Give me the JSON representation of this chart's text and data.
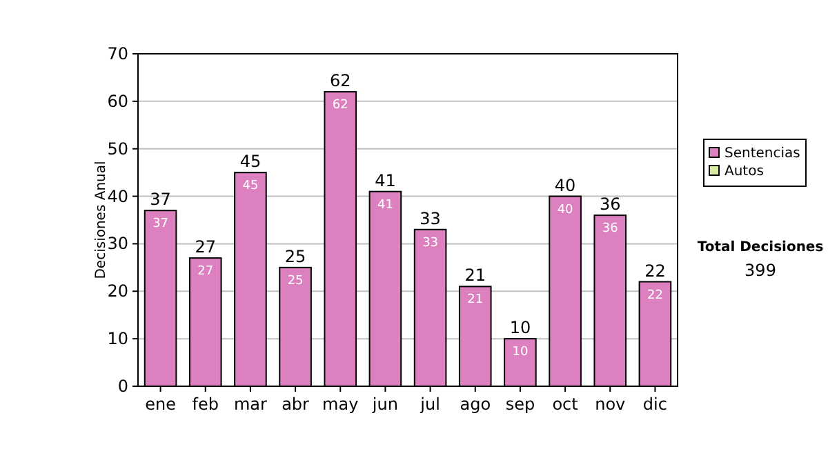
{
  "chart_data": {
    "type": "bar",
    "ylabel": "Decisiones Anual",
    "categories": [
      "ene",
      "feb",
      "mar",
      "abr",
      "may",
      "jun",
      "jul",
      "ago",
      "sep",
      "oct",
      "nov",
      "dic"
    ],
    "series": [
      {
        "name": "Sentencias",
        "color": "#dd80c0",
        "values": [
          37,
          27,
          45,
          25,
          62,
          41,
          33,
          21,
          10,
          40,
          36,
          22
        ]
      },
      {
        "name": "Autos",
        "color": "#d8eca0",
        "values": [
          null,
          null,
          null,
          null,
          null,
          null,
          null,
          null,
          null,
          null,
          null,
          null
        ]
      }
    ],
    "stacked": true,
    "data_labels": true,
    "totals": [
      "37",
      "27",
      "45",
      "25",
      "62",
      "41",
      "33",
      "21",
      "10",
      "40",
      "36",
      "22"
    ],
    "ylim": [
      0,
      70
    ],
    "yticks": [
      0,
      10,
      20,
      30,
      40,
      50,
      60,
      70
    ],
    "grid": "y",
    "legend": "right",
    "annotations": [
      "Total Decisiones",
      "399"
    ]
  }
}
